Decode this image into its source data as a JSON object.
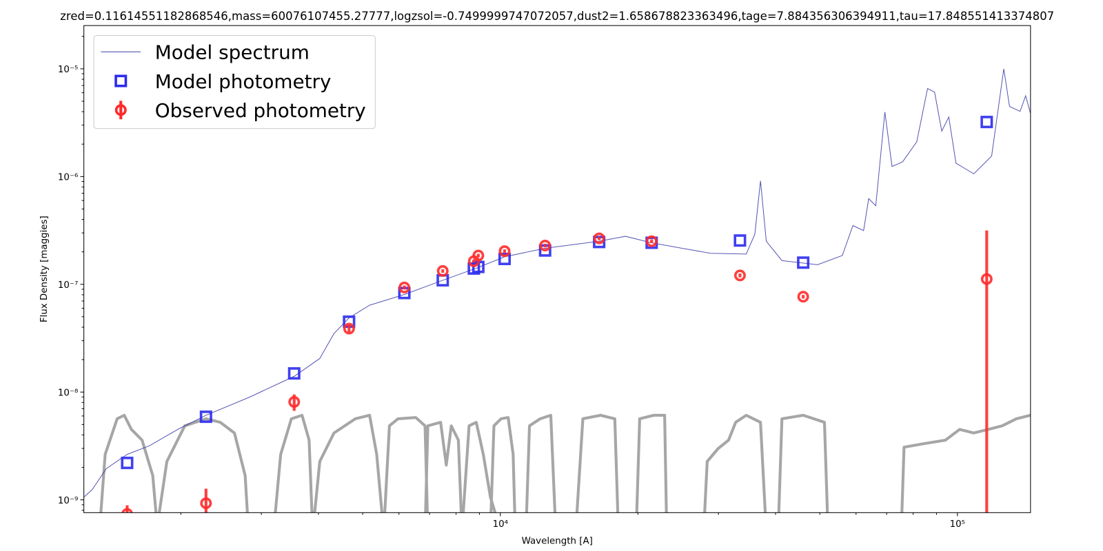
{
  "chart_data": {
    "type": "line",
    "title": "zred=0.11614551182868546,mass=60076107455.27777,logzsol=-0.7499999747072057,dust2=1.658678823363496,tage=7.884356306394911,tau=17.848551413374807",
    "xlabel": "Wavelength [A]",
    "ylabel": "Flux Density [maggies]",
    "xscale": "log",
    "yscale": "log",
    "xlim": [
      1227,
      144500
    ],
    "ylim": [
      7.6e-10,
      2.52e-05
    ],
    "xticks": [
      {
        "value": 10000,
        "label": "10⁴"
      },
      {
        "value": 100000,
        "label": "10⁵"
      }
    ],
    "yticks": [
      {
        "value": 1e-09,
        "label": "10⁻⁹"
      },
      {
        "value": 1e-08,
        "label": "10⁻⁸"
      },
      {
        "value": 1e-07,
        "label": "10⁻⁷"
      },
      {
        "value": 1e-06,
        "label": "10⁻⁶"
      },
      {
        "value": 1e-05,
        "label": "10⁻⁵"
      }
    ],
    "xminorticks": [
      2000,
      3000,
      4000,
      5000,
      6000,
      7000,
      8000,
      9000,
      20000,
      30000,
      40000,
      50000,
      60000,
      70000,
      80000,
      90000
    ],
    "yminorticks": [
      8e-10,
      9e-10,
      2e-09,
      3e-09,
      4e-09,
      5e-09,
      6e-09,
      7e-09,
      8e-09,
      9e-09,
      2e-08,
      3e-08,
      4e-08,
      5e-08,
      6e-08,
      7e-08,
      8e-08,
      9e-08,
      2e-07,
      3e-07,
      4e-07,
      5e-07,
      6e-07,
      7e-07,
      8e-07,
      9e-07,
      2e-06,
      3e-06,
      4e-06,
      5e-06,
      6e-06,
      7e-06,
      8e-06,
      9e-06,
      2e-05
    ],
    "legend": "upper left",
    "series": [
      {
        "name": "Model spectrum",
        "type": "line",
        "color": "#3a3aa8",
        "x": [
          1227,
          1279,
          1374,
          1526,
          1706,
          1969,
          2270,
          2813,
          3540,
          4027,
          4325,
          4667,
          5176,
          6166,
          7482,
          8857,
          10217,
          12530,
          16440,
          18780,
          21430,
          24990,
          28850,
          34510,
          36040,
          37080,
          38180,
          41310,
          49410,
          55990,
          59060,
          62330,
          63950,
          66270,
          69380,
          71930,
          75860,
          81470,
          86030,
          89130,
          92400,
          95730,
          99280,
          108600,
          118800,
          126300,
          130000,
          137100,
          141000,
          144500
        ],
        "values": [
          1.06e-09,
          1.24e-09,
          1.95e-09,
          2.64e-09,
          3.17e-09,
          4.5e-09,
          6.09e-09,
          8.89e-09,
          1.4e-08,
          2.05e-08,
          3.49e-08,
          4.88e-08,
          6.4e-08,
          8.04e-08,
          1.09e-07,
          1.41e-07,
          1.8e-07,
          2.16e-07,
          2.51e-07,
          2.79e-07,
          2.43e-07,
          2.16e-07,
          1.94e-07,
          1.91e-07,
          2.92e-07,
          9.12e-07,
          2.51e-07,
          1.66e-07,
          1.52e-07,
          1.85e-07,
          3.51e-07,
          3.15e-07,
          6.24e-07,
          5.36e-07,
          3.97e-06,
          1.24e-06,
          1.37e-06,
          2.1e-06,
          6.56e-06,
          6.08e-06,
          2.64e-06,
          3.57e-06,
          1.33e-06,
          1.06e-06,
          1.55e-06,
          1e-05,
          4.48e-06,
          4.03e-06,
          5.62e-06,
          3.85e-06
        ]
      },
      {
        "name": "Model photometry",
        "type": "scatter",
        "marker": "square",
        "color": "#2b2bee",
        "x": [
          1526,
          2270,
          3540,
          4667,
          6166,
          7482,
          8750,
          8950,
          10217,
          12530,
          16450,
          21430,
          33440,
          45980,
          115900
        ],
        "values": [
          2.2e-09,
          5.9e-09,
          1.49e-08,
          4.5e-08,
          8.3e-08,
          1.09e-07,
          1.4e-07,
          1.45e-07,
          1.72e-07,
          2.06e-07,
          2.47e-07,
          2.43e-07,
          2.55e-07,
          1.59e-07,
          3.21e-06
        ]
      },
      {
        "name": "Observed photometry",
        "type": "errorbar",
        "marker": "circle",
        "color": "#ff2a2a",
        "x": [
          1526,
          2270,
          3540,
          4667,
          6166,
          7482,
          8750,
          8950,
          10217,
          12530,
          16450,
          21430,
          33440,
          45980,
          115900
        ],
        "values": [
          7.4e-10,
          9.3e-10,
          8.1e-09,
          3.88e-08,
          9.35e-08,
          1.33e-07,
          1.64e-07,
          1.85e-07,
          2.03e-07,
          2.29e-07,
          2.67e-07,
          2.51e-07,
          1.21e-07,
          7.68e-08,
          1.12e-07
        ],
        "errors": [
          1.5e-10,
          3.4e-10,
          1.4e-09,
          3e-09,
          4e-09,
          5e-09,
          6e-09,
          7e-09,
          8e-09,
          9e-09,
          1e-08,
          1e-08,
          5e-09,
          3e-09,
          2.04e-07
        ]
      }
    ],
    "filter_curves": {
      "color": "#a6a6a6",
      "curves": [
        {
          "x": [
            1327,
            1366,
            1451,
            1504,
            1559,
            1645,
            1736,
            1780
          ],
          "values": [
            5e-10,
            2.64e-09,
            5.65e-09,
            6.09e-09,
            4.5e-09,
            3.58e-09,
            1.68e-09,
            5e-10
          ]
        },
        {
          "x": [
            1768,
            1864,
            2040,
            2270,
            2439,
            2620,
            2765,
            2813
          ],
          "values": [
            5e-10,
            2.27e-09,
            4.86e-09,
            5.65e-09,
            5.24e-09,
            4.17e-09,
            1.68e-09,
            5e-10
          ]
        },
        {
          "x": [
            3190,
            3307,
            3490,
            3683,
            3816,
            3886
          ],
          "values": [
            5e-10,
            2.64e-09,
            5.65e-09,
            6.09e-09,
            3.58e-09,
            5e-10
          ]
        },
        {
          "x": [
            3886,
            4027,
            4325,
            4816,
            5176,
            5364,
            5557
          ],
          "values": [
            5e-10,
            2.27e-09,
            4.17e-09,
            5.65e-09,
            6.09e-09,
            2.64e-09,
            5e-10
          ]
        },
        {
          "x": [
            5557,
            5719,
            5971,
            6529,
            6843,
            6941
          ],
          "values": [
            5e-10,
            4.86e-09,
            5.65e-09,
            5.81e-09,
            4.86e-09,
            5e-10
          ]
        },
        {
          "x": [
            6843,
            6941,
            7402,
            7616,
            7810,
            8094,
            8242
          ],
          "values": [
            5e-10,
            4.86e-09,
            5.24e-09,
            2.1e-09,
            4.86e-09,
            3.58e-09,
            5e-10
          ]
        },
        {
          "x": [
            8242,
            8543,
            8857,
            9177,
            9511,
            10036
          ],
          "values": [
            5e-10,
            4.86e-09,
            5.24e-09,
            2.64e-09,
            1.06e-09,
            5e-10
          ]
        },
        {
          "x": [
            9511,
            9682,
            10036,
            10402,
            10666,
            10781
          ],
          "values": [
            5e-10,
            4.86e-09,
            5.65e-09,
            5.81e-09,
            2.64e-09,
            5e-10
          ]
        },
        {
          "x": [
            11376,
            11581,
            12222,
            12893,
            13223
          ],
          "values": [
            5e-10,
            4.86e-09,
            5.65e-09,
            6.09e-09,
            5e-10
          ]
        },
        {
          "x": [
            14618,
            15154,
            16571,
            17800,
            18125
          ],
          "values": [
            5e-10,
            5.65e-09,
            6.09e-09,
            5.65e-09,
            5e-10
          ]
        },
        {
          "x": [
            19820,
            20176,
            21670,
            22880,
            23120
          ],
          "values": [
            5e-10,
            5.65e-09,
            6.09e-09,
            6.09e-09,
            5e-10
          ]
        },
        {
          "x": [
            27850,
            28350,
            29930,
            31570,
            32720,
            34510,
            37080,
            38180
          ],
          "values": [
            5e-10,
            2.27e-09,
            2.98e-09,
            3.58e-09,
            5.24e-09,
            6.09e-09,
            5.24e-09,
            5e-10
          ]
        },
        {
          "x": [
            40530,
            41310,
            45980,
            51180,
            52110
          ],
          "values": [
            5e-10,
            5.65e-09,
            6.09e-09,
            5.24e-09,
            5e-10
          ]
        },
        {
          "x": [
            75350,
            76420,
            84510,
            94140,
            101100,
            108600,
            116700,
            125300,
            134600,
            144500
          ],
          "values": [
            5e-10,
            3.08e-09,
            3.32e-09,
            3.58e-09,
            4.5e-09,
            4.17e-09,
            4.5e-09,
            4.86e-09,
            5.65e-09,
            6.09e-09
          ]
        }
      ]
    }
  }
}
